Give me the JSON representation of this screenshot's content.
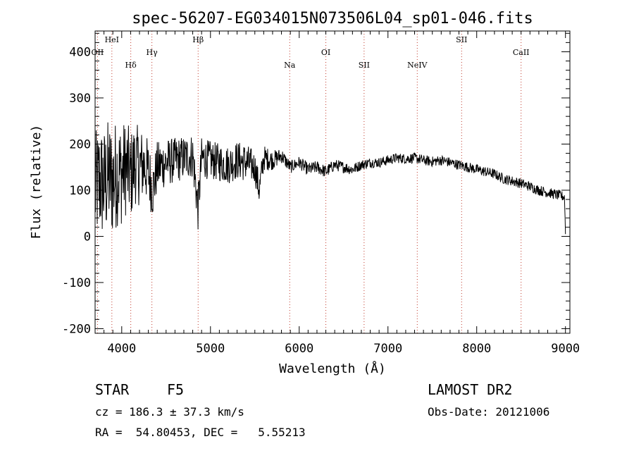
{
  "chart_data": {
    "type": "line",
    "title": "spec-56207-EG034015N073506L04_sp01-046.fits",
    "xlabel": "Wavelength (Å)",
    "ylabel": "Flux (relative)",
    "xlim": [
      3700,
      9050
    ],
    "ylim": [
      -210,
      445
    ],
    "x_ticks": [
      4000,
      5000,
      6000,
      7000,
      8000,
      9000
    ],
    "y_ticks": [
      -200,
      -100,
      0,
      100,
      200,
      300,
      400
    ],
    "grid": false,
    "lines": [
      {
        "name": "OII",
        "x": 3727,
        "level": 1
      },
      {
        "name": "HeI",
        "x": 3889,
        "level": 0
      },
      {
        "name": "Hδ",
        "x": 4102,
        "level": 2
      },
      {
        "name": "Hγ",
        "x": 4340,
        "level": 1
      },
      {
        "name": "Hβ",
        "x": 4861,
        "level": 0
      },
      {
        "name": "Na",
        "x": 5893,
        "level": 2
      },
      {
        "name": "OI",
        "x": 6300,
        "level": 1
      },
      {
        "name": "SII",
        "x": 6731,
        "level": 2
      },
      {
        "name": "NeIV",
        "x": 7330,
        "level": 2
      },
      {
        "name": "SII",
        "x": 7830,
        "level": 0
      },
      {
        "name": "CaII",
        "x": 8500,
        "level": 1
      }
    ],
    "series": [
      {
        "x": [
          3700,
          3750,
          3800,
          3850,
          3900,
          3950,
          4000,
          4050,
          4100,
          4150,
          4200,
          4250,
          4300,
          4350,
          4400,
          4500,
          4600,
          4700,
          4800,
          4860,
          4900,
          5000,
          5100,
          5200,
          5300,
          5400,
          5500,
          5550,
          5600,
          5700,
          5800,
          5900,
          6000,
          6100,
          6200,
          6300,
          6400,
          6500,
          6600,
          6700,
          6800,
          6900,
          7000,
          7100,
          7200,
          7300,
          7400,
          7500,
          7600,
          7700,
          7800,
          7900,
          8000,
          8100,
          8200,
          8300,
          8400,
          8500,
          8600,
          8700,
          8800,
          8900,
          8950,
          8990,
          9000
        ],
        "y": [
          100,
          120,
          110,
          130,
          120,
          140,
          135,
          150,
          130,
          160,
          150,
          155,
          140,
          100,
          150,
          160,
          165,
          170,
          175,
          60,
          170,
          165,
          160,
          155,
          165,
          160,
          150,
          100,
          170,
          165,
          175,
          150,
          160,
          145,
          150,
          140,
          155,
          150,
          145,
          155,
          160,
          160,
          165,
          170,
          168,
          170,
          165,
          162,
          165,
          160,
          155,
          150,
          145,
          140,
          135,
          125,
          120,
          115,
          108,
          100,
          95,
          90,
          88,
          85,
          5
        ],
        "noise": [
          90,
          90,
          90,
          90,
          90,
          85,
          80,
          75,
          70,
          65,
          60,
          55,
          50,
          45,
          40,
          38,
          35,
          35,
          35,
          35,
          32,
          30,
          30,
          30,
          30,
          30,
          25,
          25,
          20,
          15,
          12,
          10,
          10,
          10,
          10,
          10,
          9,
          9,
          9,
          8,
          8,
          8,
          8,
          8,
          8,
          8,
          8,
          8,
          8,
          8,
          8,
          8,
          8,
          8,
          8,
          8,
          8,
          8,
          8,
          8,
          8,
          8,
          8,
          8,
          0
        ]
      }
    ]
  },
  "info": {
    "object_class": "STAR",
    "subclass": "F5",
    "survey": "LAMOST DR2",
    "redshift": "cz = 186.3 ± 37.3 km/s",
    "obs_date": "Obs-Date: 20121006",
    "coords": "RA =  54.80453, DEC =   5.55213"
  }
}
